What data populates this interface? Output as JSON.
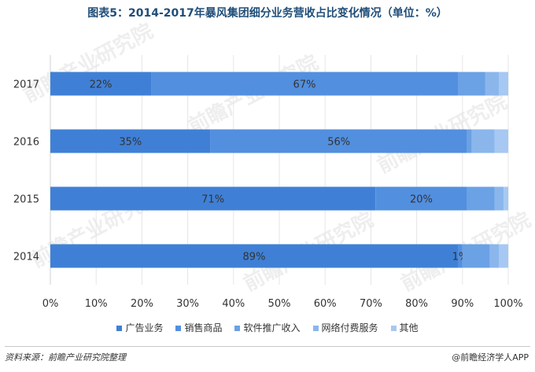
{
  "title": "图表5：2014-2017年暴风集团细分业务营收占比变化情况（单位：%）",
  "source": "资料来源：前瞻产业研究院整理",
  "brand": "@前瞻经济学人APP",
  "watermark": "前瞻产业研究院",
  "colors": [
    "#3f80d6",
    "#528fdf",
    "#6ba1e5",
    "#8ab6ec",
    "#a6c8f2"
  ],
  "chart_data": {
    "type": "bar",
    "orientation": "horizontal",
    "stacked": true,
    "categories": [
      "2017",
      "2016",
      "2015",
      "2014"
    ],
    "series": [
      {
        "name": "广告业务",
        "values": [
          22,
          35,
          71,
          89
        ]
      },
      {
        "name": "销售商品",
        "values": [
          67,
          56,
          20,
          1
        ]
      },
      {
        "name": "软件推广收入",
        "values": [
          6,
          1,
          6,
          6
        ]
      },
      {
        "name": "网络付费服务",
        "values": [
          3,
          5,
          2,
          2
        ]
      },
      {
        "name": "其他",
        "values": [
          2,
          3,
          1,
          2
        ]
      }
    ],
    "labeled_series": [
      "广告业务",
      "销售商品"
    ],
    "xlim": [
      0,
      100
    ],
    "xticks": [
      "0%",
      "10%",
      "20%",
      "30%",
      "40%",
      "50%",
      "60%",
      "70%",
      "80%",
      "90%",
      "100%"
    ],
    "legend_position": "bottom",
    "grid": true
  }
}
